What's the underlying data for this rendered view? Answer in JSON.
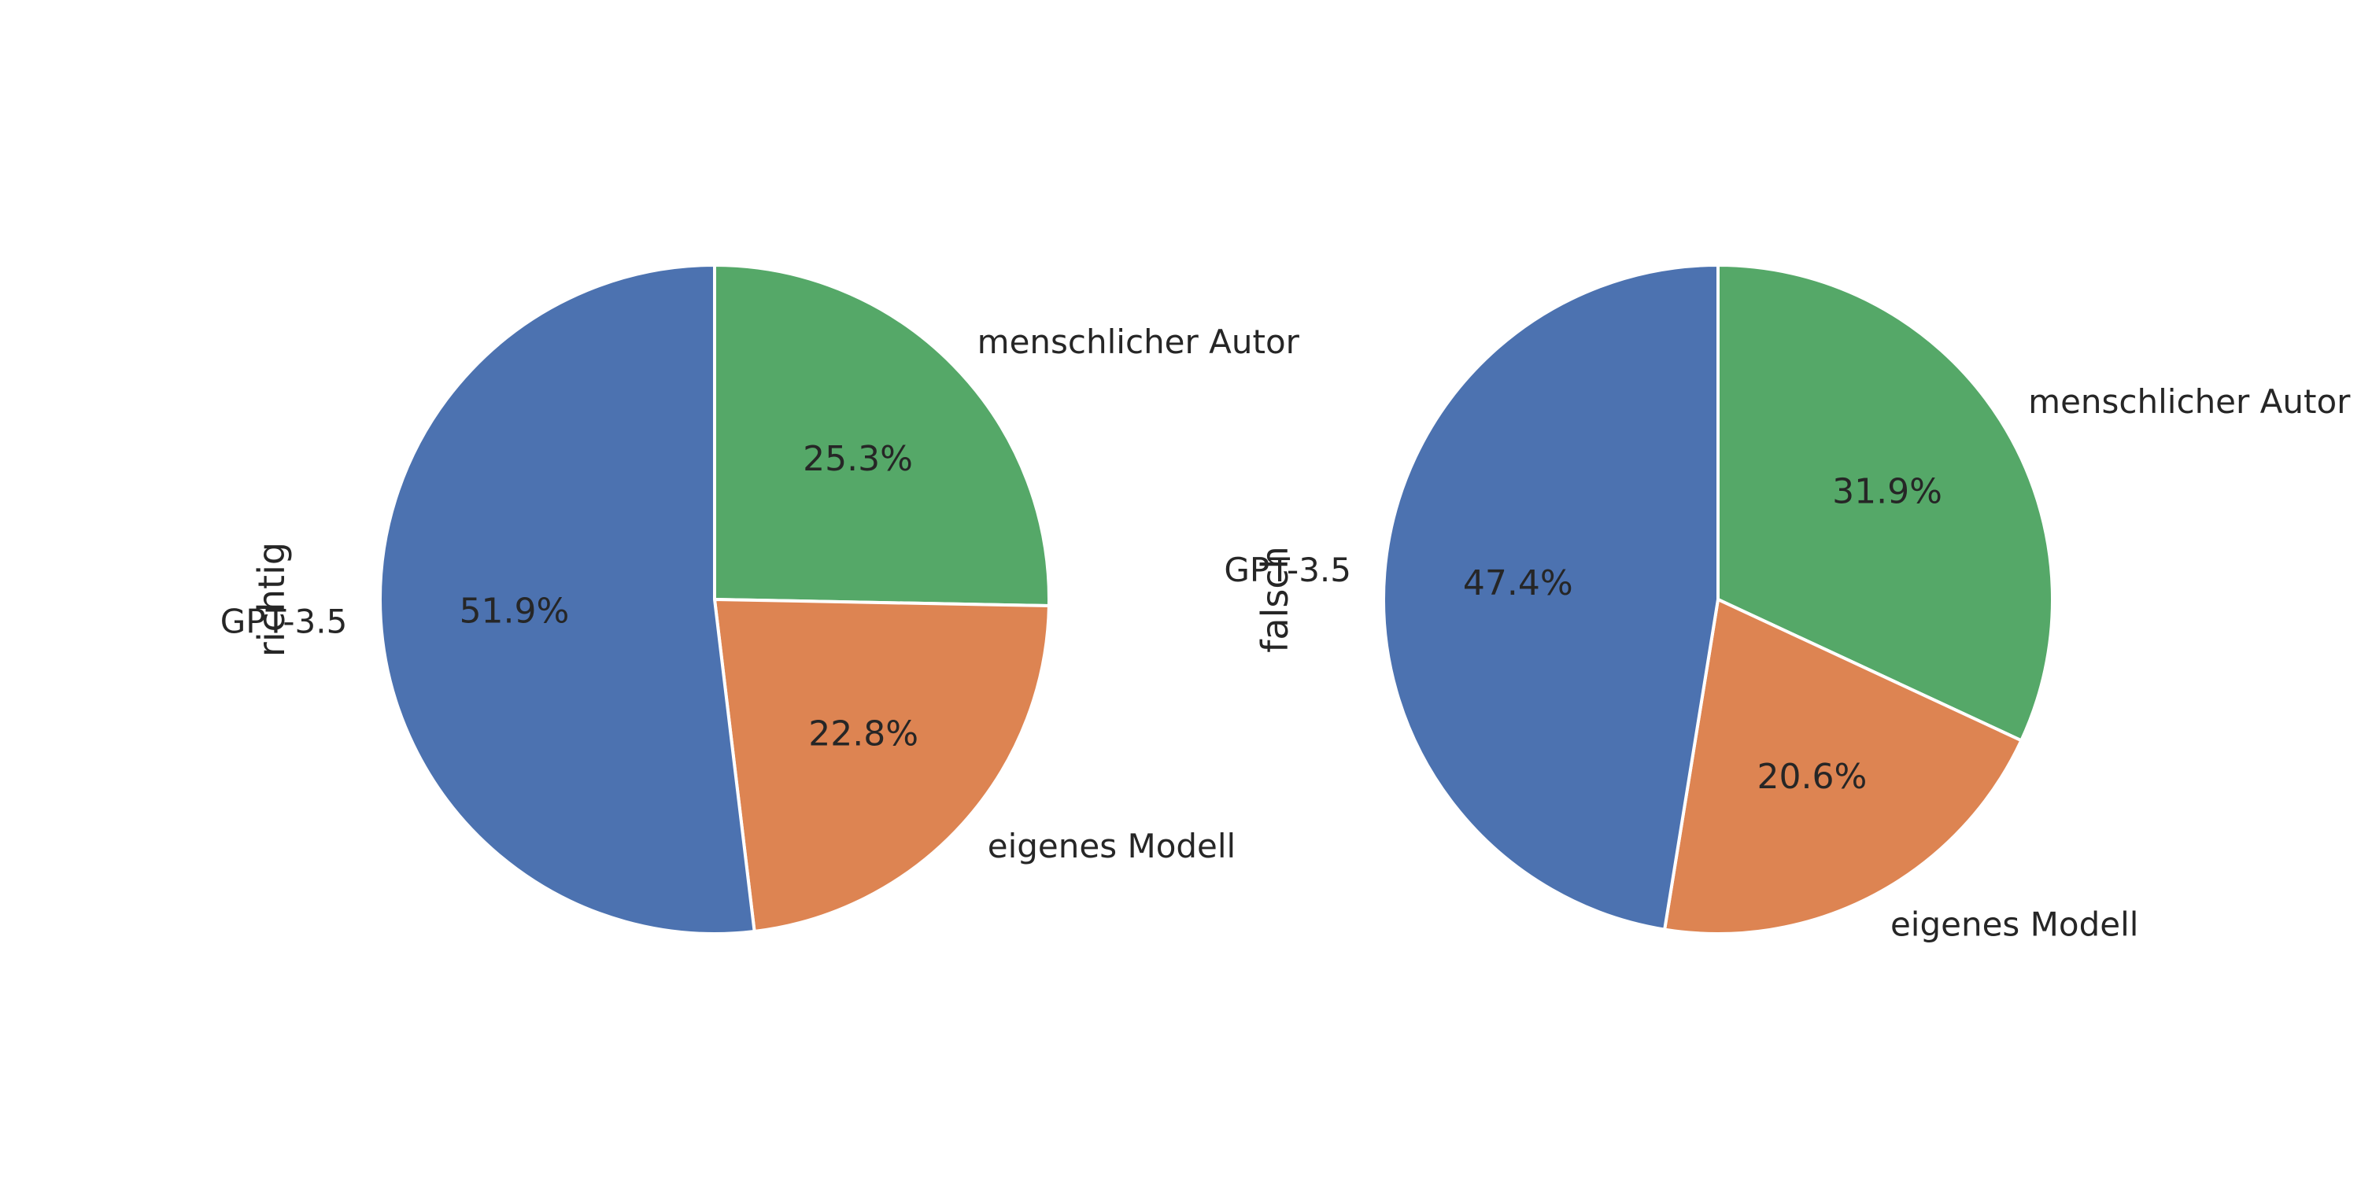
{
  "chart_data": [
    {
      "type": "pie",
      "ylabel": "richtig",
      "start_angle_deg": 90,
      "direction": "clockwise",
      "slices": [
        {
          "label": "menschlicher Autor",
          "value": 25.3,
          "pct_label": "25.3%",
          "color": "#55a868"
        },
        {
          "label": "eigenes Modell",
          "value": 22.8,
          "pct_label": "22.8%",
          "color": "#dd8452"
        },
        {
          "label": "GPT-3.5",
          "value": 51.9,
          "pct_label": "51.9%",
          "color": "#4c72b0"
        }
      ]
    },
    {
      "type": "pie",
      "ylabel": "falsch",
      "start_angle_deg": 90,
      "direction": "clockwise",
      "slices": [
        {
          "label": "menschlicher Autor",
          "value": 31.9,
          "pct_label": "31.9%",
          "color": "#55a868"
        },
        {
          "label": "eigenes Modell",
          "value": 20.6,
          "pct_label": "20.6%",
          "color": "#dd8452"
        },
        {
          "label": "GPT-3.5",
          "value": 47.4,
          "pct_label": "47.4%",
          "color": "#4c72b0"
        }
      ]
    }
  ]
}
